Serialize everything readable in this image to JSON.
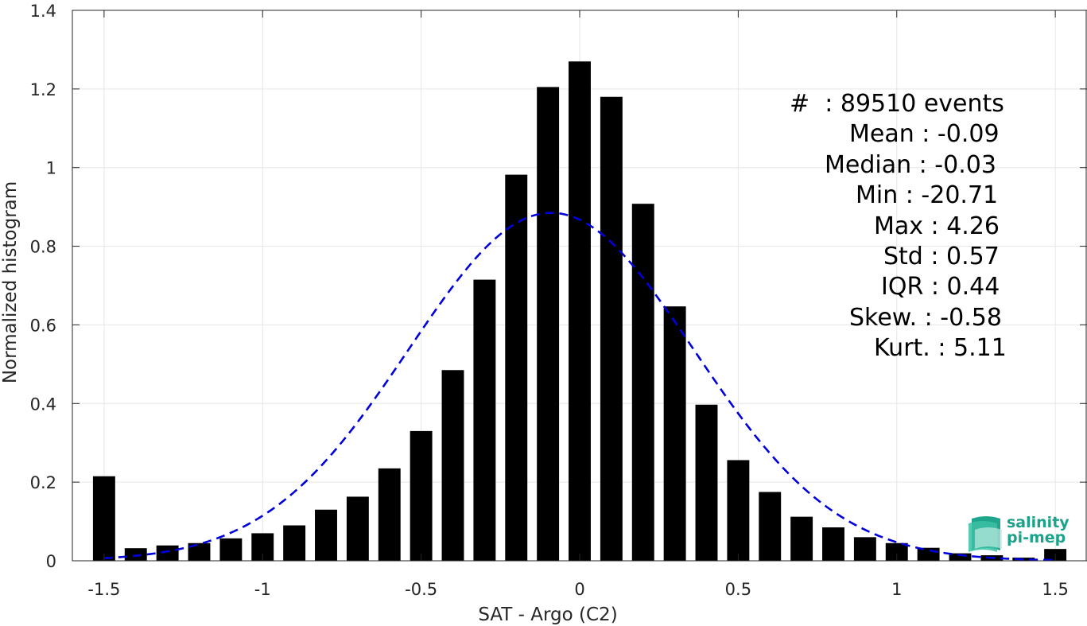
{
  "chart_data": {
    "type": "bar",
    "title": "",
    "xlabel": "SAT - Argo (C2)",
    "ylabel": "Normalized histogram",
    "xlim": [
      -1.6,
      1.6
    ],
    "ylim": [
      0,
      1.4
    ],
    "xticks": [
      "-1.5",
      "-1",
      "-0.5",
      "0",
      "0.5",
      "1",
      "1.5"
    ],
    "yticks": [
      "0",
      "0.2",
      "0.4",
      "0.6",
      "0.8",
      "1",
      "1.2",
      "1.4"
    ],
    "grid": true,
    "bar_color": "#000000",
    "fit_color": "#0000dd",
    "series": [
      {
        "type": "bar",
        "x": [
          -1.5,
          -1.4,
          -1.3,
          -1.2,
          -1.1,
          -1.0,
          -0.9,
          -0.8,
          -0.7,
          -0.6,
          -0.5,
          -0.4,
          -0.3,
          -0.2,
          -0.1,
          0.0,
          0.1,
          0.2,
          0.3,
          0.4,
          0.5,
          0.6,
          0.7,
          0.8,
          0.9,
          1.0,
          1.1,
          1.2,
          1.3,
          1.4,
          1.5
        ],
        "values": [
          0.215,
          0.032,
          0.039,
          0.045,
          0.057,
          0.07,
          0.09,
          0.13,
          0.163,
          0.235,
          0.33,
          0.485,
          0.715,
          0.982,
          1.205,
          1.27,
          1.18,
          0.908,
          0.647,
          0.397,
          0.256,
          0.175,
          0.112,
          0.085,
          0.06,
          0.045,
          0.033,
          0.019,
          0.014,
          0.008,
          0.03
        ]
      },
      {
        "type": "line",
        "style": "dashed",
        "distribution": "normal",
        "mean": -0.09,
        "std": 0.45,
        "peak": 0.885,
        "x_range": [
          -1.5,
          1.5
        ]
      }
    ],
    "annotation": [
      "#  : 89510 events",
      "Mean : -0.09",
      "Median : -0.03",
      "Min : -20.71",
      "Max : 4.26",
      "Std : 0.57",
      "IQR : 0.44",
      "Skew. : -0.58",
      "Kurt. : 5.11"
    ]
  },
  "logo": {
    "line1": "salinity",
    "line2": "pi-mep"
  }
}
